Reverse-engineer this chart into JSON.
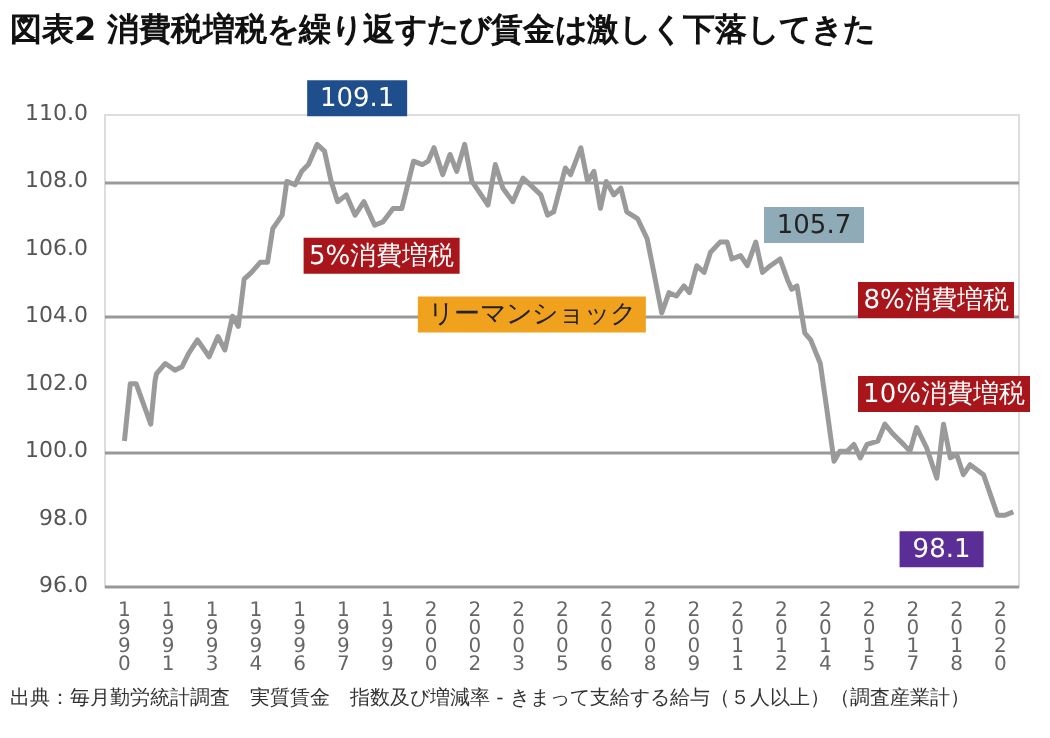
{
  "chart_data": {
    "type": "line",
    "title": "図表2 消費税増税を繰り返すたび賃金は激しく下落してきた",
    "x": [
      1990.0,
      1990.2,
      1990.4,
      1990.9,
      1991.05,
      1991.1,
      1991.4,
      1991.73,
      1991.97,
      1992.2,
      1992.5,
      1992.9,
      1993.2,
      1993.44,
      1993.7,
      1993.9,
      1994.1,
      1994.35,
      1994.65,
      1994.9,
      1995.08,
      1995.4,
      1995.56,
      1995.84,
      1996.07,
      1996.3,
      1996.6,
      1996.85,
      1997.08,
      1997.3,
      1997.6,
      1997.9,
      1998.2,
      1998.57,
      1998.85,
      1999.2,
      1999.5,
      1999.9,
      2000.2,
      2000.4,
      2000.6,
      2000.9,
      2001.15,
      2001.38,
      2001.65,
      2001.9,
      2002.45,
      2002.7,
      2002.96,
      2003.3,
      2003.65,
      2003.9,
      2004.26,
      2004.49,
      2004.7,
      2005.1,
      2005.28,
      2005.63,
      2005.86,
      2006.08,
      2006.3,
      2006.5,
      2006.76,
      2007.0,
      2007.2,
      2007.57,
      2007.9,
      2008.13,
      2008.4,
      2008.65,
      2008.9,
      2009.16,
      2009.35,
      2009.6,
      2009.85,
      2010.07,
      2010.4,
      2010.64,
      2010.8,
      2011.1,
      2011.33,
      2011.62,
      2011.85,
      2012.12,
      2012.45,
      2012.7,
      2012.85,
      2013.03,
      2013.3,
      2013.5,
      2013.83,
      2014.06,
      2014.3,
      2014.5,
      2014.75,
      2014.98,
      2015.2,
      2015.43,
      2015.8,
      2016.04,
      2016.33,
      2016.68,
      2016.9,
      2017.13,
      2017.47,
      2017.82,
      2018.05,
      2018.28,
      2018.5,
      2018.73,
      2018.96,
      2019.42,
      2019.7,
      2019.9,
      2020.15,
      2020.44
    ],
    "series": [
      {
        "color": "#9a9a9a",
        "values": [
          100.3,
          102.0,
          102.0,
          100.8,
          102.1,
          102.3,
          102.6,
          102.4,
          102.5,
          102.9,
          103.3,
          102.8,
          103.4,
          103.0,
          104.0,
          103.7,
          105.1,
          105.3,
          105.6,
          105.6,
          106.6,
          107.0,
          108.0,
          107.9,
          108.3,
          108.5,
          109.1,
          108.9,
          108.0,
          107.4,
          107.6,
          107.0,
          107.4,
          106.7,
          106.8,
          107.2,
          107.2,
          108.6,
          108.5,
          108.6,
          109.0,
          108.2,
          108.8,
          108.3,
          109.1,
          108.0,
          107.3,
          108.5,
          107.8,
          107.4,
          108.1,
          107.9,
          107.6,
          107.0,
          107.1,
          108.4,
          108.2,
          109.0,
          108.0,
          108.3,
          107.2,
          108.0,
          107.6,
          107.8,
          107.1,
          106.9,
          106.3,
          105.3,
          104.1,
          104.7,
          104.6,
          104.9,
          104.7,
          105.5,
          105.3,
          105.9,
          106.2,
          106.2,
          105.7,
          105.8,
          105.5,
          106.2,
          105.3,
          105.5,
          105.7,
          105.1,
          104.8,
          104.9,
          103.5,
          103.3,
          102.6,
          101.2,
          99.7,
          100.0,
          100.0,
          100.2,
          99.8,
          100.2,
          100.3,
          100.8,
          100.5,
          100.2,
          100.0,
          100.7,
          100.1,
          99.2,
          100.8,
          99.8,
          99.9,
          99.3,
          99.6,
          99.3,
          98.6,
          98.1,
          98.1,
          98.2
        ]
      }
    ],
    "xlim": [
      1989.3,
      2020.6
    ],
    "xticks": [
      {
        "value": 1990,
        "label": "1990"
      },
      {
        "value": 1991.5,
        "label": "1991"
      },
      {
        "value": 1993,
        "label": "1993"
      },
      {
        "value": 1994.5,
        "label": "1994"
      },
      {
        "value": 1996,
        "label": "1996"
      },
      {
        "value": 1997.5,
        "label": "1997"
      },
      {
        "value": 1999,
        "label": "1999"
      },
      {
        "value": 2000.5,
        "label": "2000"
      },
      {
        "value": 2002,
        "label": "2002"
      },
      {
        "value": 2003.5,
        "label": "2003"
      },
      {
        "value": 2005,
        "label": "2005"
      },
      {
        "value": 2006.5,
        "label": "2006"
      },
      {
        "value": 2008,
        "label": "2008"
      },
      {
        "value": 2009.5,
        "label": "2009"
      },
      {
        "value": 2011,
        "label": "2011"
      },
      {
        "value": 2012.5,
        "label": "2012"
      },
      {
        "value": 2014,
        "label": "2014"
      },
      {
        "value": 2015.5,
        "label": "2015"
      },
      {
        "value": 2017,
        "label": "2017"
      },
      {
        "value": 2018.5,
        "label": "2018"
      },
      {
        "value": 2020,
        "label": "2020"
      }
    ],
    "ylim": [
      96,
      110
    ],
    "yticks": [
      {
        "value": 96,
        "label": "96.0"
      },
      {
        "value": 98,
        "label": "98.0"
      },
      {
        "value": 100,
        "label": "100.0"
      },
      {
        "value": 102,
        "label": "102.0"
      },
      {
        "value": 104,
        "label": "104.0"
      },
      {
        "value": 106,
        "label": "106.0"
      },
      {
        "value": 108,
        "label": "108.0"
      },
      {
        "value": 110,
        "label": "110.0"
      }
    ],
    "grid": "y",
    "marker": "none",
    "line_style": "solid",
    "annotations": [
      {
        "text": "109.1",
        "x": 1996.6,
        "y": 109.1
      },
      {
        "text": "5%消費増税",
        "x": 1997.3,
        "y": 107.4
      },
      {
        "text": "リーマンショック",
        "x": 2008.13,
        "y": 105.3
      },
      {
        "text": "105.7",
        "x": 2012.45,
        "y": 105.7
      },
      "8%消費増税",
      "10%消費増税",
      {
        "text": "98.1",
        "x": 2019.9,
        "y": 98.1
      },
      "出典：毎月勤労統計調査　実質賃金　指数及び増減率 - きまって支給する給与（５人以上）（調査産業計）"
    ]
  }
}
